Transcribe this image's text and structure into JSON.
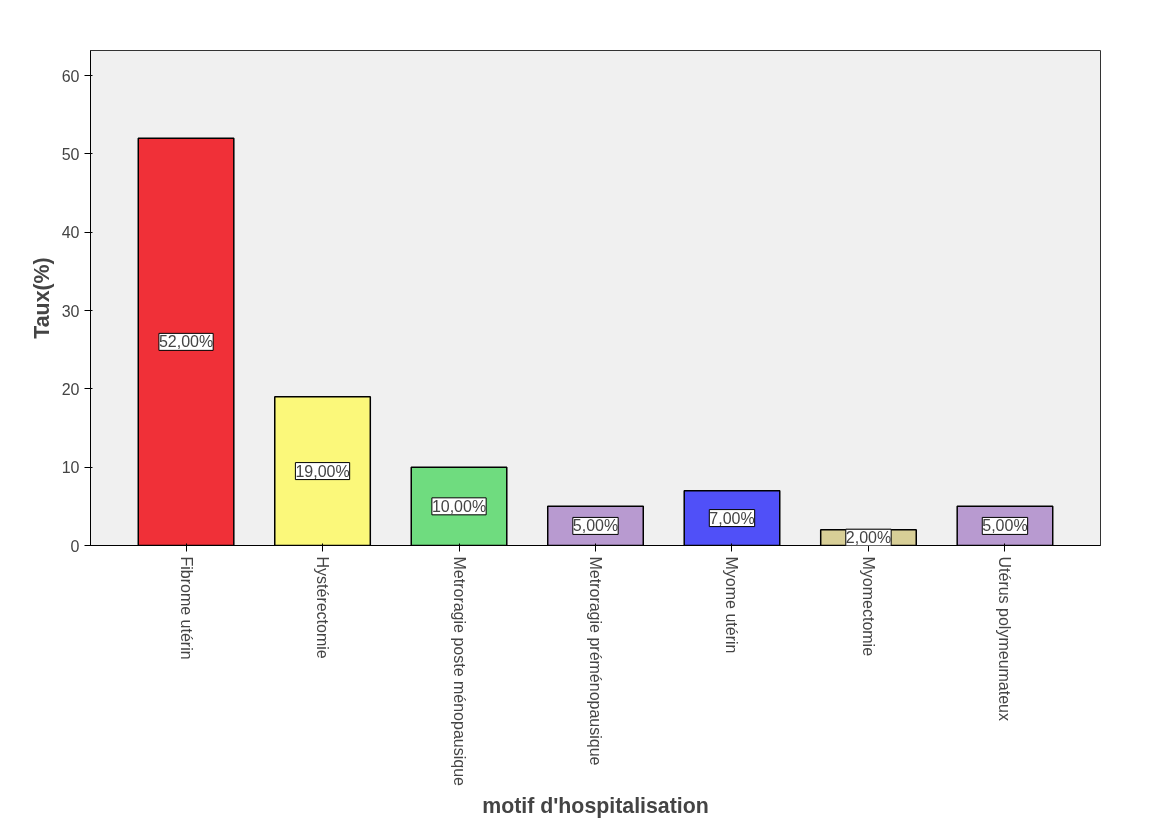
{
  "chart_data": {
    "type": "bar",
    "xlabel": "motif d'hospitalisation",
    "ylabel": "Taux(%)",
    "categories": [
      "Fibrome utérin",
      "Hystérectomie",
      "Metroragie poste ménopausique",
      "Metroragie préménopausique",
      "Myome utérin",
      "Myomectomie",
      "Utérus polymeumateux"
    ],
    "values": [
      52,
      19,
      10,
      5,
      7,
      2,
      5
    ],
    "colors": [
      "#f03038",
      "#fbf87a",
      "#6fdc7f",
      "#b89ad0",
      "#5050f8",
      "#d8cf97",
      "#b89ad0"
    ],
    "value_labels": [
      "52,00%",
      "19,00%",
      "10,00%",
      "5,00%",
      "7,00%",
      "2,00%",
      "5,00%"
    ],
    "ylim": [
      0,
      63.2
    ],
    "yticks": [
      0,
      10,
      20,
      30,
      40,
      50,
      60
    ],
    "grid": false
  }
}
